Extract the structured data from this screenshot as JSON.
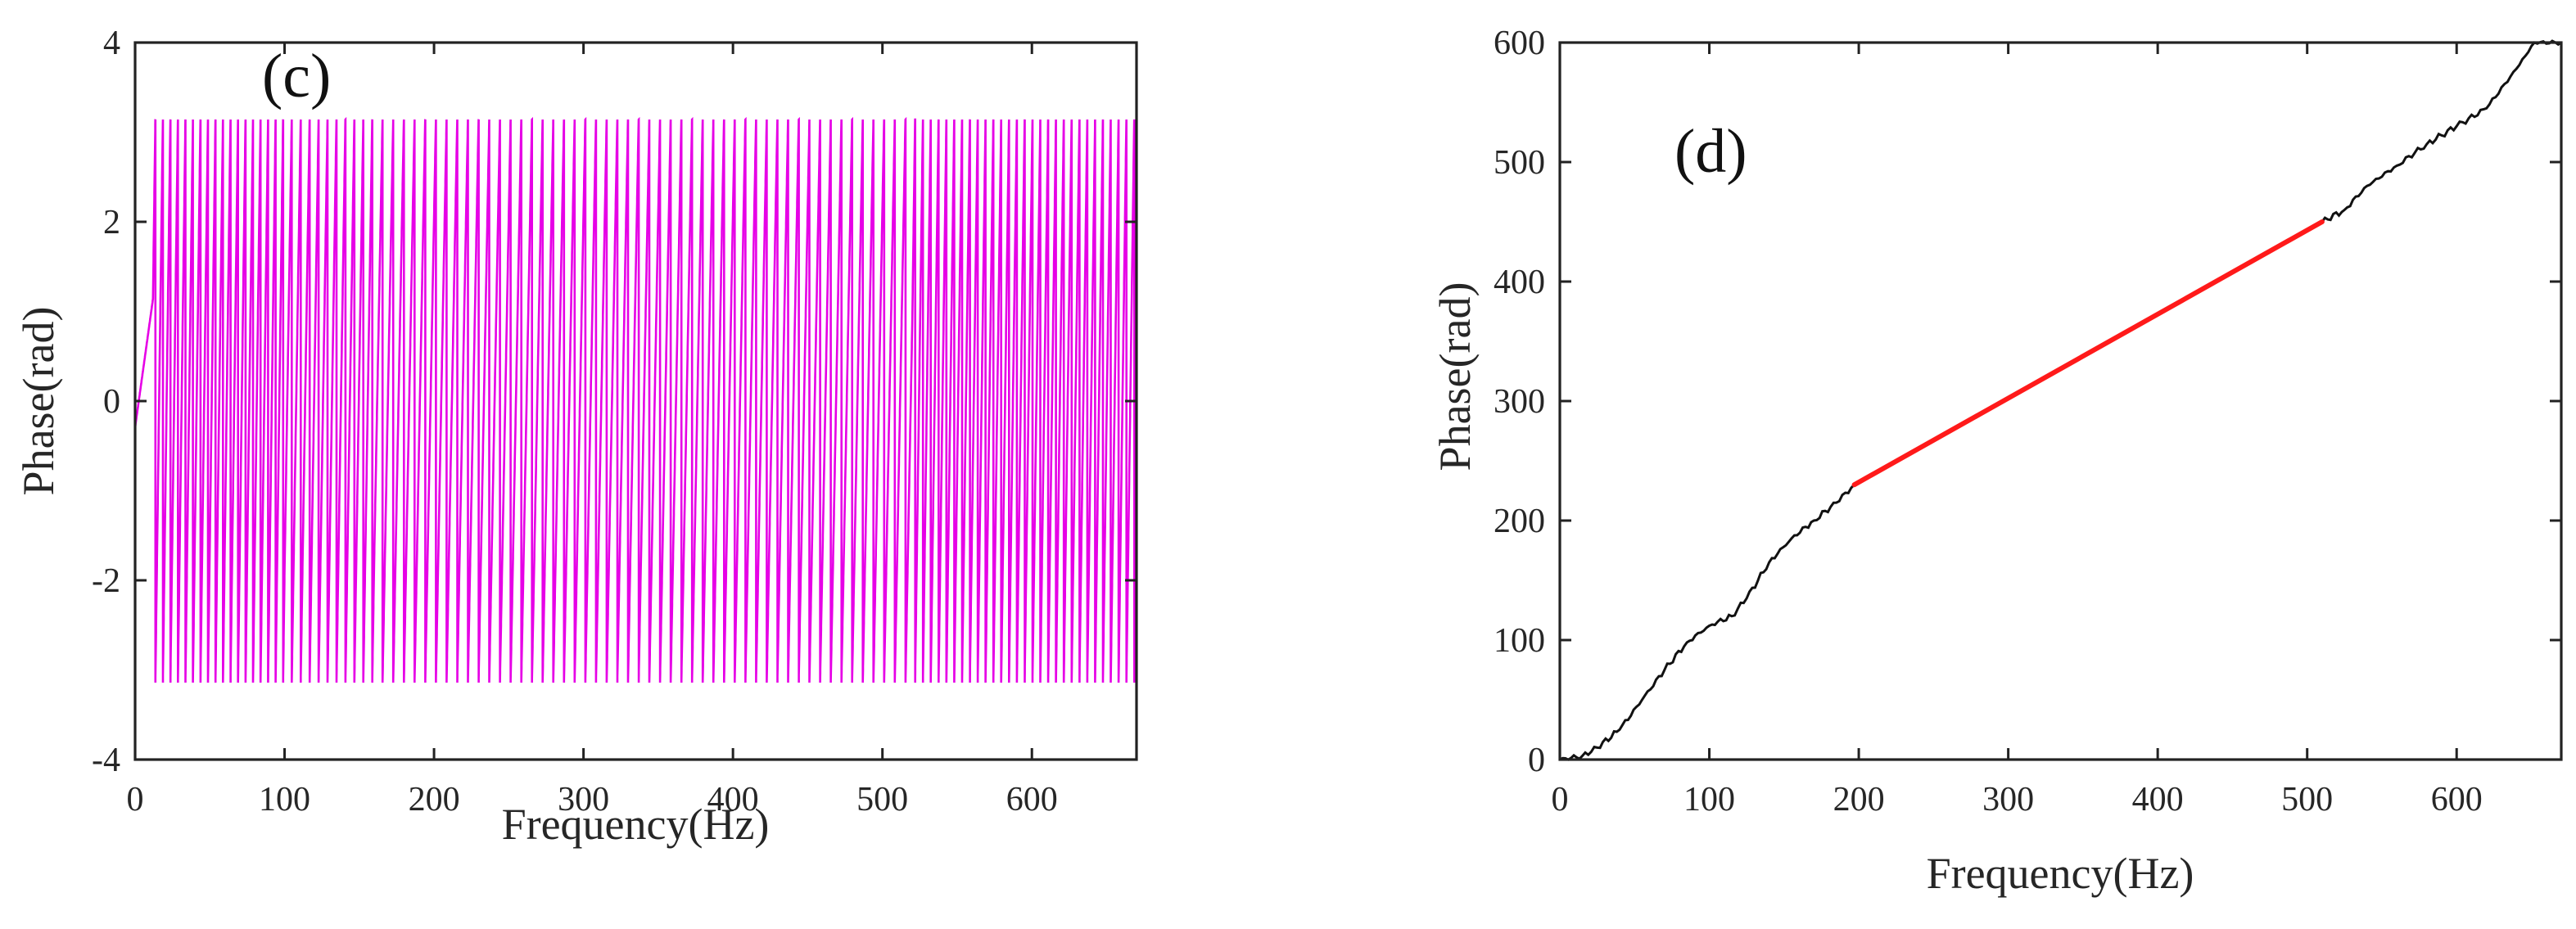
{
  "chart_data": [
    {
      "type": "line",
      "panel_label": "(c)",
      "title": "",
      "xlabel": "Frequency(Hz)",
      "ylabel": "Phase(rad)",
      "xlim": [
        0,
        670
      ],
      "ylim": [
        -4,
        4
      ],
      "x_ticks": [
        0,
        100,
        200,
        300,
        400,
        500,
        600
      ],
      "y_ticks": [
        -4,
        -2,
        0,
        2,
        4
      ],
      "grid": false,
      "series": [
        {
          "color": "#e600e6",
          "description_points": "wrapped phase oscillating between -3.1416 and 3.1416",
          "wrap_limits": [
            -3.1416,
            3.1416
          ],
          "x_start": 0,
          "x_end": 670
        }
      ]
    },
    {
      "type": "line",
      "panel_label": "(d)",
      "title": "",
      "xlabel": "Frequency(Hz)",
      "ylabel": "Phase(rad)",
      "xlim": [
        0,
        670
      ],
      "ylim": [
        0,
        600
      ],
      "x_ticks": [
        0,
        100,
        200,
        300,
        400,
        500,
        600
      ],
      "y_ticks": [
        0,
        100,
        200,
        300,
        400,
        500,
        600
      ],
      "grid": false,
      "series": [
        {
          "color": "#111111",
          "x": [
            0,
            15,
            25,
            40,
            55,
            70,
            85,
            100,
            115,
            125,
            140,
            155,
            170,
            185,
            197,
            510,
            525,
            540,
            560,
            580,
            600,
            620,
            640,
            652,
            670
          ],
          "y": [
            0,
            3,
            10,
            25,
            50,
            75,
            98,
            112,
            120,
            135,
            165,
            185,
            200,
            215,
            230,
            450,
            460,
            480,
            497,
            515,
            530,
            545,
            578,
            600,
            600
          ]
        },
        {
          "color": "#ff1a1a",
          "x": [
            197,
            510
          ],
          "y": [
            230,
            450
          ]
        }
      ]
    }
  ]
}
